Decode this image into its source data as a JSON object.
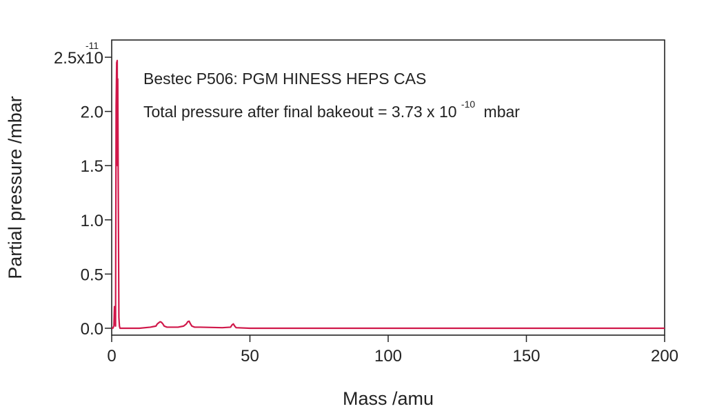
{
  "chart_data": {
    "type": "line",
    "annotations": {
      "line1": "Bestec P506: PGM HINESS HEPS CAS",
      "line2_prefix": "Total pressure after final bakeout = 3.73 x 10",
      "line2_exponent": "-10",
      "line2_suffix": "mbar"
    },
    "xlabel": "Mass /amu",
    "ylabel": "Partial pressure /mbar",
    "xlim": [
      0,
      200
    ],
    "ylim": [
      0,
      2.55
    ],
    "x_ticks": [
      "0",
      "50",
      "100",
      "150",
      "200"
    ],
    "y_ticks": [
      "0.0",
      "0.5",
      "1.0",
      "1.5",
      "2.0",
      "2.5x10"
    ],
    "y_top_exponent": "-11",
    "grid": false,
    "series": [
      {
        "color": "#d0184a",
        "x": [
          0,
          0.4,
          0.8,
          1.0,
          1.2,
          1.4,
          1.6,
          1.8,
          2.0,
          2.1,
          2.2,
          2.4,
          2.6,
          2.8,
          3.0,
          3.4,
          4.0,
          10,
          14,
          15,
          16,
          16.5,
          17,
          17.5,
          18,
          18.5,
          19,
          20,
          24,
          26,
          27,
          27.5,
          28,
          28.5,
          29,
          30,
          32,
          40,
          43,
          43.5,
          44,
          44.5,
          45,
          50,
          100,
          150,
          200
        ],
        "values": [
          0,
          0,
          0.02,
          0.2,
          0.1,
          0.02,
          2.05,
          2.45,
          2.47,
          1.5,
          2.3,
          1.2,
          0.1,
          0.02,
          0,
          0,
          0,
          0,
          0.01,
          0.015,
          0.02,
          0.04,
          0.05,
          0.06,
          0.055,
          0.04,
          0.02,
          0.01,
          0.01,
          0.02,
          0.04,
          0.06,
          0.065,
          0.04,
          0.02,
          0.01,
          0.01,
          0.005,
          0.01,
          0.03,
          0.04,
          0.02,
          0.005,
          0,
          0,
          0,
          0
        ]
      }
    ]
  }
}
